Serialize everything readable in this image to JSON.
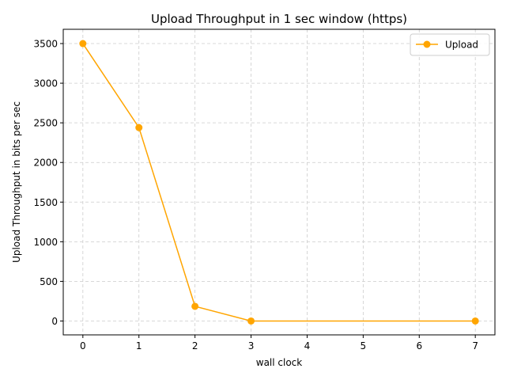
{
  "chart_data": {
    "type": "line",
    "title": "Upload Throughput in 1 sec window (https)",
    "xlabel": "wall clock",
    "ylabel": "Upload Throughput in bits per sec",
    "xlim": [
      -0.35,
      7.35
    ],
    "ylim": [
      -175,
      3680
    ],
    "x_ticks": [
      0,
      1,
      2,
      3,
      4,
      5,
      6,
      7
    ],
    "y_ticks": [
      0,
      500,
      1000,
      1500,
      2000,
      2500,
      3000,
      3500
    ],
    "grid": true,
    "legend_position": "top-right",
    "series": [
      {
        "name": "Upload",
        "color": "#FFA500",
        "marker": "circle",
        "x": [
          0,
          1,
          2,
          3,
          7
        ],
        "y": [
          3500,
          2440,
          185,
          0,
          0
        ]
      }
    ]
  }
}
